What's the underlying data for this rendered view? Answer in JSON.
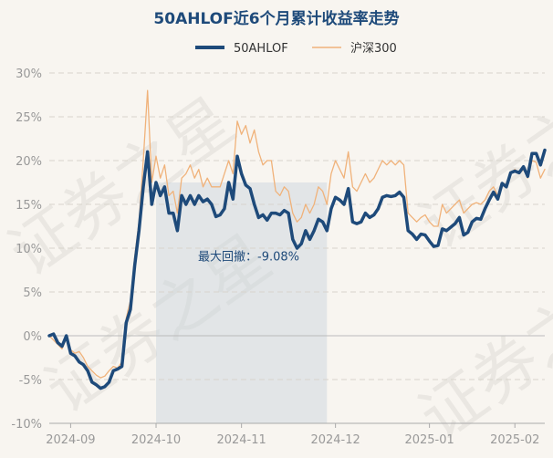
{
  "chart_data": {
    "type": "line",
    "title": "50AHLOF近6个月累计收益率走势",
    "ylim": [
      -10,
      30
    ],
    "ytick_labels": [
      "30%",
      "25%",
      "20%",
      "15%",
      "10%",
      "5%",
      "0%",
      "-5%",
      "-10%"
    ],
    "xtick_labels": [
      "2024-09",
      "2024-10",
      "2024-11",
      "2024-12",
      "2025-01",
      "2025-02"
    ],
    "legend_position": "top-center",
    "grid": "horizontal dashed",
    "annotation": "最大回撤：-9.08%",
    "drawdown": {
      "peak_index": 25,
      "trough_index": 65,
      "value": -9.08
    },
    "series": [
      {
        "name": "50AHLOF",
        "color": "#1e4a7a",
        "values": [
          0,
          0.2,
          -0.8,
          -1.2,
          0,
          -2.0,
          -2.3,
          -3.0,
          -3.3,
          -4.0,
          -5.3,
          -5.6,
          -6.0,
          -5.8,
          -5.3,
          -4.0,
          -3.8,
          -3.5,
          1.5,
          3.0,
          8.0,
          12.0,
          17.0,
          21.0,
          15.0,
          17.5,
          16.0,
          17.0,
          14.0,
          14.0,
          12.0,
          16.0,
          15.0,
          16.0,
          15.0,
          16.0,
          15.3,
          15.6,
          15.0,
          13.6,
          13.8,
          14.5,
          17.5,
          15.6,
          20.5,
          18.5,
          17.2,
          16.8,
          15.0,
          13.5,
          13.8,
          13.2,
          14.0,
          14.0,
          13.8,
          14.3,
          14.0,
          11.0,
          10.0,
          10.5,
          12.0,
          11.0,
          12.0,
          13.3,
          13.0,
          12.0,
          14.5,
          15.8,
          15.5,
          15.0,
          16.8,
          13.0,
          12.8,
          13.0,
          14.0,
          13.5,
          13.8,
          14.5,
          15.8,
          16.0,
          15.9,
          16.0,
          16.4,
          15.8,
          12.0,
          11.6,
          11.0,
          11.6,
          11.5,
          10.8,
          10.2,
          10.3,
          12.2,
          12.0,
          12.4,
          12.8,
          13.5,
          11.5,
          11.8,
          13.0,
          13.4,
          13.3,
          14.5,
          15.5,
          16.4,
          15.6,
          17.4,
          17.0,
          18.6,
          18.8,
          18.6,
          19.3,
          18.2,
          20.8,
          20.8,
          19.5,
          21.2
        ]
      },
      {
        "name": "沪深300",
        "color": "#f0b27a",
        "values": [
          0,
          -0.5,
          -1.0,
          -1.5,
          -0.3,
          -1.6,
          -2.0,
          -1.8,
          -2.5,
          -3.5,
          -4.0,
          -4.5,
          -4.8,
          -4.6,
          -4.0,
          -3.5,
          -3.7,
          -3.0,
          2.0,
          4.0,
          9.0,
          13.0,
          20.0,
          28.0,
          17.5,
          20.5,
          18.0,
          19.5,
          16.0,
          16.5,
          14.0,
          18.0,
          18.5,
          19.5,
          18.0,
          19.0,
          17.0,
          18.0,
          17.0,
          17.0,
          17.0,
          18.5,
          20.0,
          18.5,
          24.5,
          23.0,
          24.0,
          22.0,
          23.5,
          21.0,
          19.5,
          20.0,
          20.0,
          16.5,
          16.0,
          17.0,
          16.5,
          14.0,
          13.0,
          13.5,
          15.0,
          14.0,
          15.0,
          17.0,
          16.5,
          15.0,
          18.5,
          20.0,
          19.0,
          18.0,
          21.0,
          17.0,
          16.5,
          17.5,
          18.5,
          17.5,
          18.0,
          19.0,
          20.0,
          19.5,
          20.0,
          19.5,
          20.0,
          19.5,
          14.0,
          13.5,
          13.0,
          13.5,
          13.8,
          13.0,
          12.5,
          12.5,
          15.0,
          14.0,
          14.5,
          15.0,
          15.5,
          14.0,
          14.5,
          15.0,
          15.2,
          15.0,
          15.5,
          16.5,
          17.0,
          16.0,
          17.5,
          17.2,
          18.5,
          19.0,
          18.5,
          19.0,
          18.0,
          20.0,
          19.8,
          18.0,
          19.0
        ]
      }
    ]
  },
  "watermark_text": "证券之星"
}
